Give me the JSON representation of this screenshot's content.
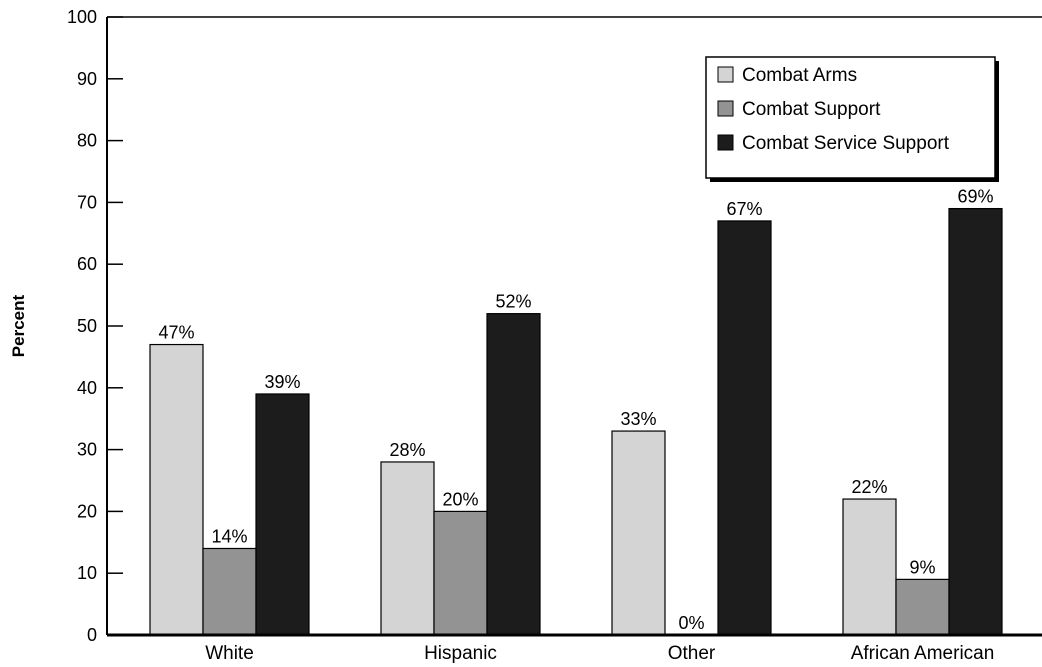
{
  "chart_data": {
    "type": "bar",
    "title": "",
    "xlabel": "",
    "ylabel": "Percent",
    "ylim": [
      0,
      100
    ],
    "yticks": [
      0,
      10,
      20,
      30,
      40,
      50,
      60,
      70,
      80,
      90,
      100
    ],
    "grid": false,
    "legend_position": "top-right",
    "categories": [
      "White",
      "Hispanic",
      "Other",
      "African American"
    ],
    "series": [
      {
        "name": "Combat Arms",
        "color": "#d4d4d4",
        "values": [
          47,
          28,
          33,
          22
        ],
        "labels": [
          "47%",
          "28%",
          "33%",
          "22%"
        ]
      },
      {
        "name": "Combat Support",
        "color": "#939393",
        "values": [
          14,
          20,
          0,
          9
        ],
        "labels": [
          "14%",
          "20%",
          "0%",
          "9%"
        ]
      },
      {
        "name": "Combat Service Support",
        "color": "#1c1c1c",
        "values": [
          39,
          52,
          67,
          69
        ],
        "labels": [
          "39%",
          "52%",
          "67%",
          "69%"
        ]
      }
    ]
  }
}
